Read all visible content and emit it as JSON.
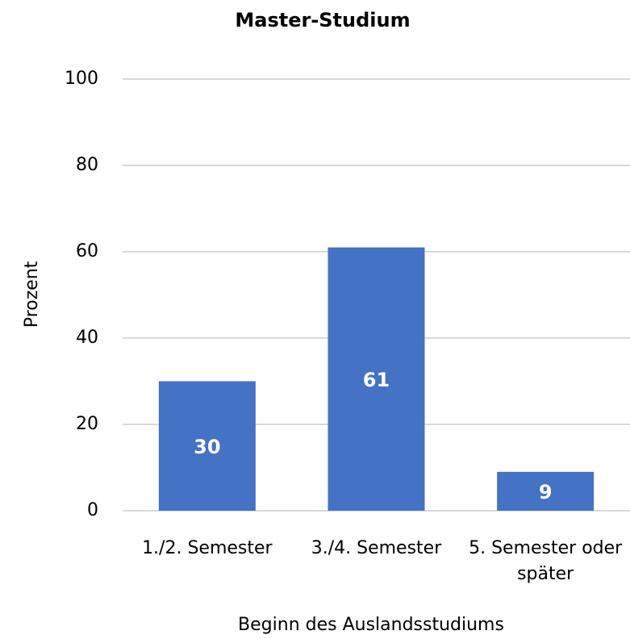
{
  "chart_data": {
    "type": "bar",
    "title": "Master-Studium",
    "x_label": "Beginn des Auslandsstudiums",
    "y_label": "Prozent",
    "categories": [
      "1./2. Semester",
      "3./4. Semester",
      "5. Semester oder später"
    ],
    "values": [
      30,
      61,
      9
    ],
    "color": "#4472c4",
    "ylim": [
      0,
      100
    ],
    "yticks": [
      0,
      20,
      40,
      60,
      80,
      100
    ],
    "grid": true
  }
}
